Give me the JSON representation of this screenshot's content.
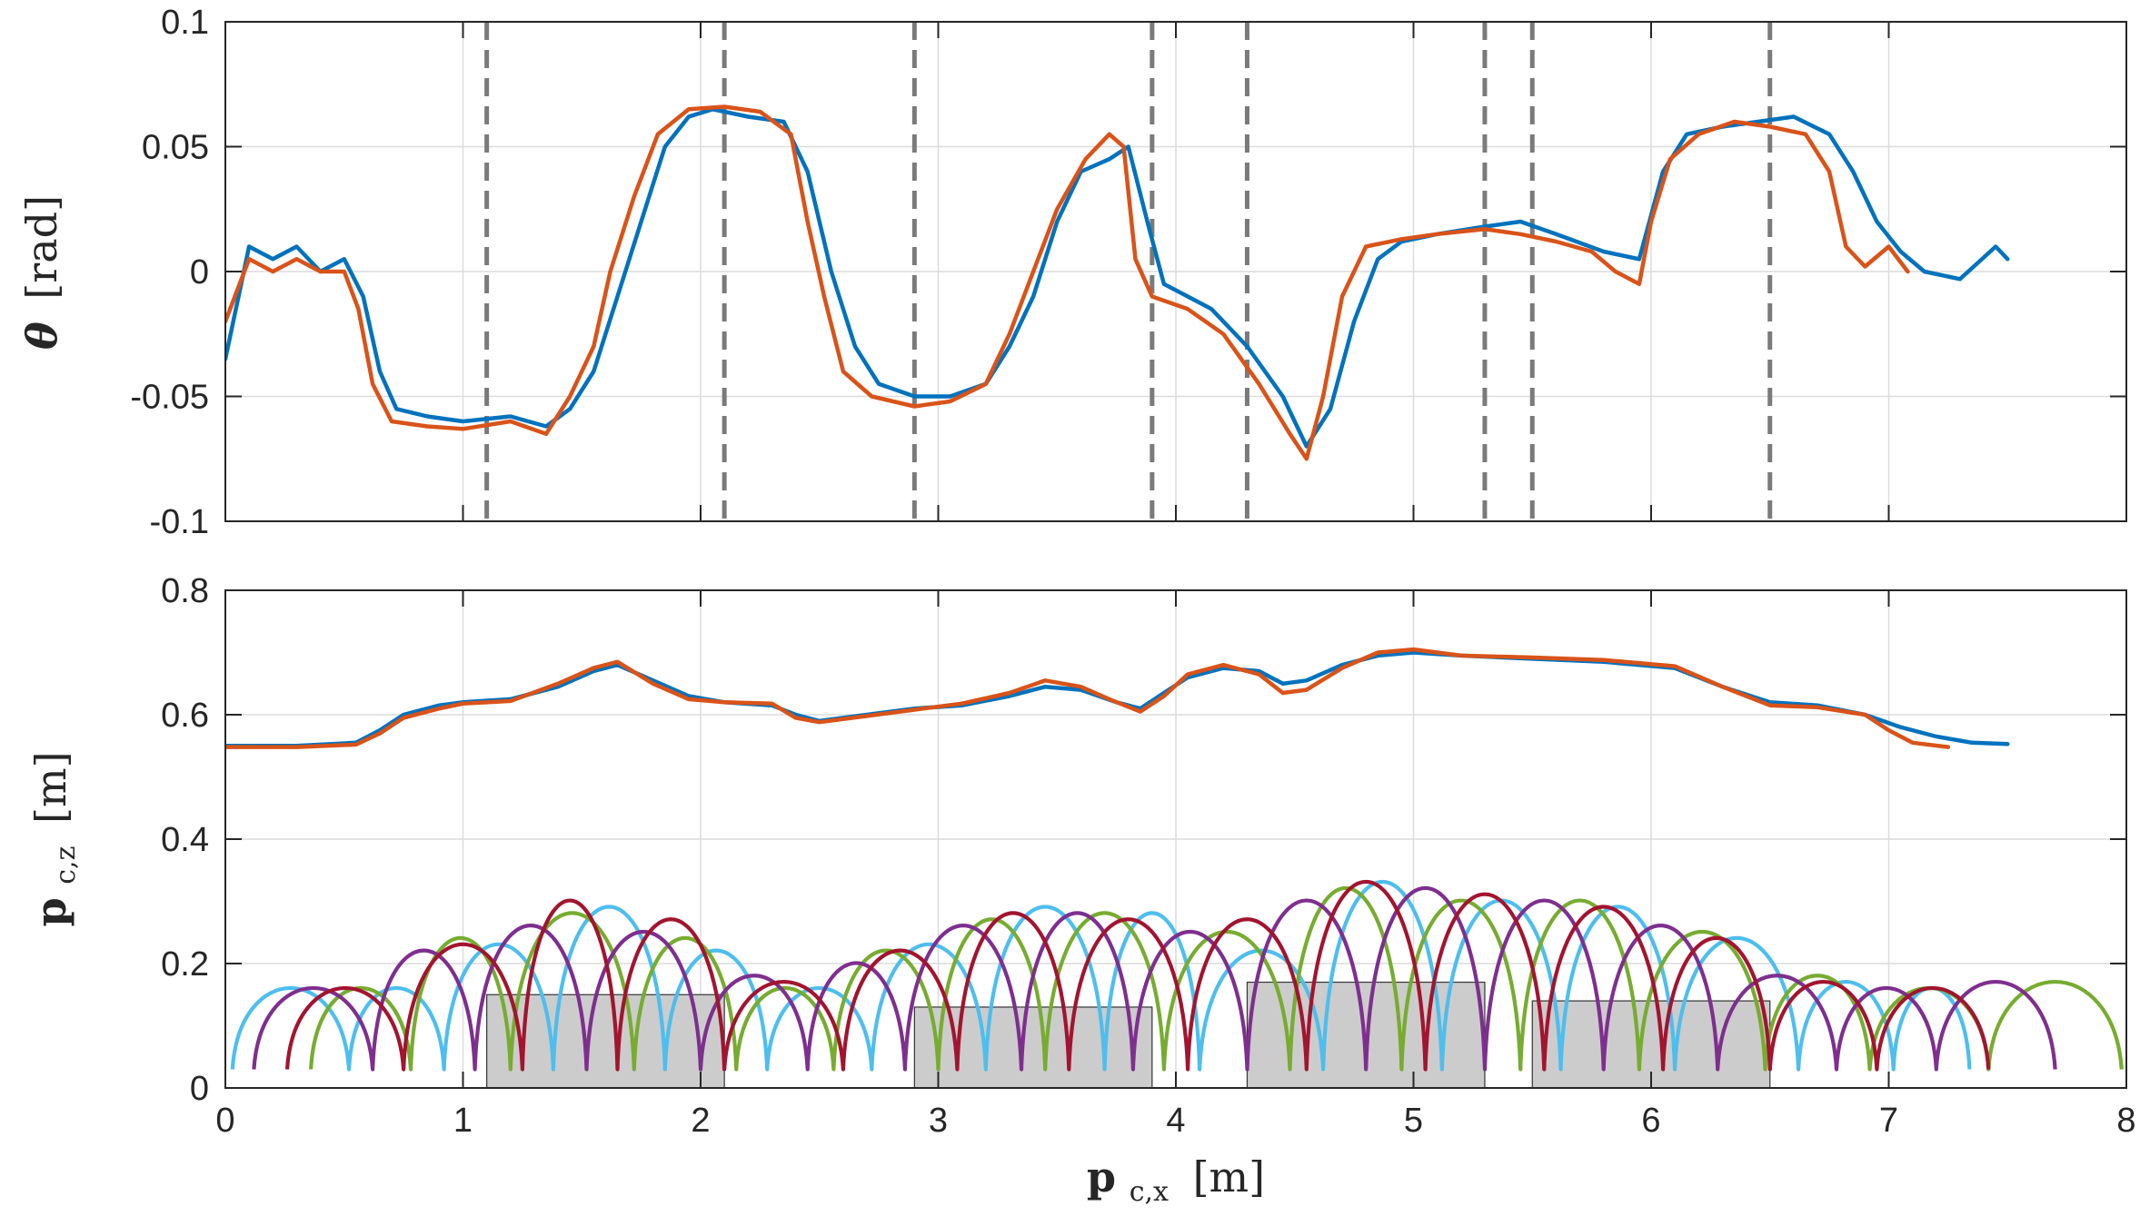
{
  "chart_data": [
    {
      "type": "line",
      "ylabel": {
        "symbol": "θ",
        "unit": "[rad]"
      },
      "xlim": [
        0,
        8
      ],
      "ylim": [
        -0.1,
        0.1
      ],
      "ytick_labels": [
        "-0.1",
        "-0.05",
        "0",
        "0.05",
        "0.1"
      ],
      "grid": true,
      "obstacle_edges_x": [
        1.1,
        2.1,
        2.9,
        3.9,
        4.3,
        5.3,
        5.5,
        6.5
      ],
      "series": [
        {
          "color": "#0072BD",
          "points": [
            [
              0,
              -0.035
            ],
            [
              0.1,
              0.01
            ],
            [
              0.2,
              0.005
            ],
            [
              0.3,
              0.01
            ],
            [
              0.4,
              0.0
            ],
            [
              0.5,
              0.005
            ],
            [
              0.58,
              -0.01
            ],
            [
              0.65,
              -0.04
            ],
            [
              0.72,
              -0.055
            ],
            [
              0.85,
              -0.058
            ],
            [
              1.0,
              -0.06
            ],
            [
              1.2,
              -0.058
            ],
            [
              1.35,
              -0.062
            ],
            [
              1.45,
              -0.055
            ],
            [
              1.55,
              -0.04
            ],
            [
              1.65,
              -0.01
            ],
            [
              1.75,
              0.02
            ],
            [
              1.85,
              0.05
            ],
            [
              1.95,
              0.062
            ],
            [
              2.05,
              0.065
            ],
            [
              2.2,
              0.062
            ],
            [
              2.35,
              0.06
            ],
            [
              2.45,
              0.04
            ],
            [
              2.55,
              0.0
            ],
            [
              2.65,
              -0.03
            ],
            [
              2.75,
              -0.045
            ],
            [
              2.9,
              -0.05
            ],
            [
              3.05,
              -0.05
            ],
            [
              3.2,
              -0.045
            ],
            [
              3.3,
              -0.03
            ],
            [
              3.4,
              -0.01
            ],
            [
              3.5,
              0.02
            ],
            [
              3.6,
              0.04
            ],
            [
              3.72,
              0.045
            ],
            [
              3.8,
              0.05
            ],
            [
              3.88,
              0.02
            ],
            [
              3.95,
              -0.005
            ],
            [
              4.05,
              -0.01
            ],
            [
              4.15,
              -0.015
            ],
            [
              4.3,
              -0.03
            ],
            [
              4.45,
              -0.05
            ],
            [
              4.55,
              -0.07
            ],
            [
              4.65,
              -0.055
            ],
            [
              4.75,
              -0.02
            ],
            [
              4.85,
              0.005
            ],
            [
              4.95,
              0.012
            ],
            [
              5.1,
              0.015
            ],
            [
              5.3,
              0.018
            ],
            [
              5.45,
              0.02
            ],
            [
              5.6,
              0.015
            ],
            [
              5.8,
              0.008
            ],
            [
              5.95,
              0.005
            ],
            [
              6.05,
              0.04
            ],
            [
              6.15,
              0.055
            ],
            [
              6.3,
              0.058
            ],
            [
              6.45,
              0.06
            ],
            [
              6.6,
              0.062
            ],
            [
              6.75,
              0.055
            ],
            [
              6.85,
              0.04
            ],
            [
              6.95,
              0.02
            ],
            [
              7.05,
              0.008
            ],
            [
              7.15,
              0.0
            ],
            [
              7.3,
              -0.003
            ],
            [
              7.45,
              0.01
            ],
            [
              7.5,
              0.005
            ]
          ]
        },
        {
          "color": "#D95319",
          "points": [
            [
              0,
              -0.02
            ],
            [
              0.1,
              0.005
            ],
            [
              0.2,
              0.0
            ],
            [
              0.3,
              0.005
            ],
            [
              0.4,
              0.0
            ],
            [
              0.5,
              0.0
            ],
            [
              0.56,
              -0.015
            ],
            [
              0.62,
              -0.045
            ],
            [
              0.7,
              -0.06
            ],
            [
              0.85,
              -0.062
            ],
            [
              1.0,
              -0.063
            ],
            [
              1.2,
              -0.06
            ],
            [
              1.35,
              -0.065
            ],
            [
              1.45,
              -0.05
            ],
            [
              1.55,
              -0.03
            ],
            [
              1.62,
              0.0
            ],
            [
              1.72,
              0.03
            ],
            [
              1.82,
              0.055
            ],
            [
              1.95,
              0.065
            ],
            [
              2.1,
              0.066
            ],
            [
              2.25,
              0.064
            ],
            [
              2.38,
              0.055
            ],
            [
              2.45,
              0.02
            ],
            [
              2.52,
              -0.01
            ],
            [
              2.6,
              -0.04
            ],
            [
              2.72,
              -0.05
            ],
            [
              2.9,
              -0.054
            ],
            [
              3.05,
              -0.052
            ],
            [
              3.2,
              -0.045
            ],
            [
              3.3,
              -0.025
            ],
            [
              3.4,
              0.0
            ],
            [
              3.5,
              0.025
            ],
            [
              3.62,
              0.045
            ],
            [
              3.72,
              0.055
            ],
            [
              3.78,
              0.05
            ],
            [
              3.83,
              0.005
            ],
            [
              3.9,
              -0.01
            ],
            [
              4.05,
              -0.015
            ],
            [
              4.2,
              -0.025
            ],
            [
              4.35,
              -0.045
            ],
            [
              4.48,
              -0.065
            ],
            [
              4.55,
              -0.075
            ],
            [
              4.62,
              -0.05
            ],
            [
              4.7,
              -0.01
            ],
            [
              4.8,
              0.01
            ],
            [
              4.95,
              0.013
            ],
            [
              5.1,
              0.015
            ],
            [
              5.3,
              0.017
            ],
            [
              5.45,
              0.015
            ],
            [
              5.6,
              0.012
            ],
            [
              5.75,
              0.008
            ],
            [
              5.85,
              0.0
            ],
            [
              5.95,
              -0.005
            ],
            [
              6.0,
              0.02
            ],
            [
              6.08,
              0.045
            ],
            [
              6.2,
              0.055
            ],
            [
              6.35,
              0.06
            ],
            [
              6.5,
              0.058
            ],
            [
              6.65,
              0.055
            ],
            [
              6.75,
              0.04
            ],
            [
              6.82,
              0.01
            ],
            [
              6.9,
              0.002
            ],
            [
              7.0,
              0.01
            ],
            [
              7.08,
              0.0
            ]
          ]
        }
      ]
    },
    {
      "type": "line",
      "ylabel": {
        "symbol": "p",
        "sub": "c,z",
        "unit": "[m]"
      },
      "xlabel": {
        "symbol": "p",
        "sub": "c,x",
        "unit": "[m]"
      },
      "xlim": [
        0,
        8
      ],
      "ylim": [
        0,
        0.8
      ],
      "xtick_labels": [
        "0",
        "1",
        "2",
        "3",
        "4",
        "5",
        "6",
        "7",
        "8"
      ],
      "ytick_labels": [
        "0",
        "0.2",
        "0.4",
        "0.6",
        "0.8"
      ],
      "grid": true,
      "obstacles": [
        {
          "x": [
            1.1,
            2.1
          ],
          "height": 0.15
        },
        {
          "x": [
            2.9,
            3.9
          ],
          "height": 0.13
        },
        {
          "x": [
            4.3,
            5.3
          ],
          "height": 0.17
        },
        {
          "x": [
            5.5,
            6.5
          ],
          "height": 0.14
        }
      ],
      "series": [
        {
          "color": "#0072BD",
          "points": [
            [
              0,
              0.55
            ],
            [
              0.3,
              0.55
            ],
            [
              0.55,
              0.555
            ],
            [
              0.65,
              0.575
            ],
            [
              0.75,
              0.6
            ],
            [
              0.9,
              0.615
            ],
            [
              1.0,
              0.62
            ],
            [
              1.2,
              0.625
            ],
            [
              1.4,
              0.645
            ],
            [
              1.55,
              0.67
            ],
            [
              1.65,
              0.68
            ],
            [
              1.8,
              0.655
            ],
            [
              1.95,
              0.63
            ],
            [
              2.1,
              0.62
            ],
            [
              2.3,
              0.615
            ],
            [
              2.4,
              0.6
            ],
            [
              2.5,
              0.59
            ],
            [
              2.7,
              0.6
            ],
            [
              2.9,
              0.61
            ],
            [
              3.1,
              0.615
            ],
            [
              3.3,
              0.63
            ],
            [
              3.45,
              0.645
            ],
            [
              3.6,
              0.64
            ],
            [
              3.75,
              0.62
            ],
            [
              3.85,
              0.61
            ],
            [
              3.95,
              0.635
            ],
            [
              4.05,
              0.66
            ],
            [
              4.2,
              0.675
            ],
            [
              4.35,
              0.67
            ],
            [
              4.45,
              0.65
            ],
            [
              4.55,
              0.655
            ],
            [
              4.7,
              0.68
            ],
            [
              4.85,
              0.695
            ],
            [
              5.0,
              0.7
            ],
            [
              5.2,
              0.695
            ],
            [
              5.5,
              0.69
            ],
            [
              5.8,
              0.685
            ],
            [
              6.1,
              0.675
            ],
            [
              6.3,
              0.645
            ],
            [
              6.5,
              0.62
            ],
            [
              6.7,
              0.615
            ],
            [
              6.9,
              0.6
            ],
            [
              7.05,
              0.58
            ],
            [
              7.2,
              0.565
            ],
            [
              7.35,
              0.555
            ],
            [
              7.5,
              0.553
            ]
          ]
        },
        {
          "color": "#D95319",
          "points": [
            [
              0,
              0.548
            ],
            [
              0.3,
              0.548
            ],
            [
              0.55,
              0.552
            ],
            [
              0.65,
              0.57
            ],
            [
              0.75,
              0.595
            ],
            [
              0.9,
              0.61
            ],
            [
              1.0,
              0.618
            ],
            [
              1.2,
              0.622
            ],
            [
              1.4,
              0.65
            ],
            [
              1.55,
              0.675
            ],
            [
              1.65,
              0.685
            ],
            [
              1.8,
              0.65
            ],
            [
              1.95,
              0.625
            ],
            [
              2.1,
              0.62
            ],
            [
              2.3,
              0.618
            ],
            [
              2.4,
              0.595
            ],
            [
              2.5,
              0.588
            ],
            [
              2.7,
              0.598
            ],
            [
              2.9,
              0.608
            ],
            [
              3.1,
              0.618
            ],
            [
              3.3,
              0.635
            ],
            [
              3.45,
              0.655
            ],
            [
              3.6,
              0.645
            ],
            [
              3.72,
              0.625
            ],
            [
              3.85,
              0.605
            ],
            [
              3.95,
              0.63
            ],
            [
              4.05,
              0.665
            ],
            [
              4.2,
              0.68
            ],
            [
              4.35,
              0.665
            ],
            [
              4.45,
              0.635
            ],
            [
              4.55,
              0.64
            ],
            [
              4.7,
              0.675
            ],
            [
              4.85,
              0.7
            ],
            [
              5.0,
              0.705
            ],
            [
              5.2,
              0.695
            ],
            [
              5.5,
              0.692
            ],
            [
              5.8,
              0.688
            ],
            [
              6.1,
              0.678
            ],
            [
              6.3,
              0.645
            ],
            [
              6.5,
              0.615
            ],
            [
              6.7,
              0.612
            ],
            [
              6.9,
              0.6
            ],
            [
              7.0,
              0.575
            ],
            [
              7.1,
              0.555
            ],
            [
              7.25,
              0.548
            ]
          ]
        }
      ],
      "swing_series": [
        {
          "color": "#4DBEEE",
          "touchdowns": [
            0.03,
            0.52,
            0.92,
            1.38,
            1.85,
            2.28,
            2.72,
            3.2,
            3.7,
            4.1,
            4.62,
            5.12,
            5.62,
            6.1,
            6.62,
            7.02,
            7.34
          ],
          "heights": [
            0.16,
            0.16,
            0.23,
            0.29,
            0.22,
            0.16,
            0.23,
            0.29,
            0.28,
            0.22,
            0.33,
            0.3,
            0.29,
            0.24,
            0.17,
            0.16
          ]
        },
        {
          "color": "#77AC30",
          "touchdowns": [
            0.36,
            0.78,
            1.2,
            1.72,
            2.15,
            2.56,
            3.0,
            3.45,
            3.95,
            4.48,
            4.95,
            5.45,
            5.95,
            6.48,
            6.92,
            7.42,
            7.98
          ],
          "heights": [
            0.16,
            0.24,
            0.28,
            0.24,
            0.16,
            0.22,
            0.27,
            0.28,
            0.25,
            0.32,
            0.3,
            0.3,
            0.25,
            0.18,
            0.16,
            0.17
          ]
        },
        {
          "color": "#7E2F8E",
          "touchdowns": [
            0.12,
            0.62,
            1.05,
            1.52,
            2.0,
            2.45,
            2.86,
            3.35,
            3.82,
            4.3,
            4.8,
            5.3,
            5.8,
            6.28,
            6.78,
            7.2,
            7.7
          ],
          "heights": [
            0.16,
            0.22,
            0.26,
            0.25,
            0.18,
            0.2,
            0.26,
            0.28,
            0.25,
            0.3,
            0.32,
            0.3,
            0.26,
            0.18,
            0.16,
            0.17
          ]
        },
        {
          "color": "#A2142F",
          "touchdowns": [
            0.26,
            0.75,
            1.25,
            1.65,
            2.1,
            2.6,
            3.08,
            3.55,
            4.05,
            4.55,
            5.05,
            5.55,
            6.05,
            6.5,
            6.95,
            7.42
          ],
          "heights": [
            0.16,
            0.23,
            0.3,
            0.27,
            0.17,
            0.22,
            0.28,
            0.27,
            0.27,
            0.33,
            0.31,
            0.29,
            0.24,
            0.17,
            0.16
          ]
        }
      ]
    }
  ]
}
